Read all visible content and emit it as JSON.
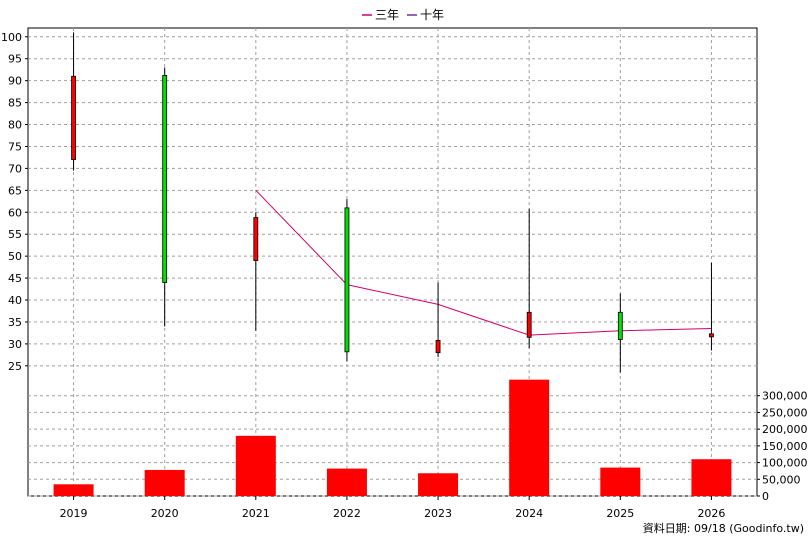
{
  "chart_data": {
    "type": "candlestick",
    "categories": [
      "2019",
      "2020",
      "2021",
      "2022",
      "2023",
      "2024",
      "2025",
      "2026"
    ],
    "price": {
      "ylim": [
        22,
        102
      ],
      "ticks": [
        25,
        30,
        35,
        40,
        45,
        50,
        55,
        60,
        65,
        70,
        75,
        80,
        85,
        90,
        95,
        100
      ],
      "candles": [
        {
          "open": 72.0,
          "close": 91.0,
          "high": 101.0,
          "low": 69.5,
          "color": "#ff0000"
        },
        {
          "open": 91.2,
          "close": 44.0,
          "high": 93.0,
          "low": 34.0,
          "color": "#00e000"
        },
        {
          "open": 49.0,
          "close": 58.8,
          "high": 60.0,
          "low": 33.0,
          "color": "#ff0000"
        },
        {
          "open": 61.0,
          "close": 28.2,
          "high": 63.0,
          "low": 26.0,
          "color": "#00e000"
        },
        {
          "open": 28.0,
          "close": 30.8,
          "high": 44.0,
          "low": 27.0,
          "color": "#ff0000"
        },
        {
          "open": 31.5,
          "close": 37.2,
          "high": 60.8,
          "low": 29.0,
          "color": "#ff0000"
        },
        {
          "open": 37.2,
          "close": 31.0,
          "high": 41.5,
          "low": 23.5,
          "color": "#00e000"
        },
        {
          "open": 31.6,
          "close": 32.3,
          "high": 48.5,
          "low": 28.5,
          "color": "#ff0000"
        }
      ]
    },
    "series": [
      {
        "name": "三年",
        "color": "#d0006f",
        "values": [
          null,
          null,
          65.0,
          43.5,
          39.0,
          32.0,
          33.0,
          33.5
        ]
      },
      {
        "name": "十年",
        "color": "#7030a0",
        "values": [
          null,
          null,
          null,
          null,
          null,
          null,
          null,
          null
        ]
      }
    ],
    "volume": {
      "ylim": [
        0,
        350000
      ],
      "ticks": [
        0,
        50000,
        100000,
        150000,
        200000,
        250000,
        300000
      ],
      "tick_labels": [
        "0",
        "50,000",
        "100,000",
        "150,000",
        "200,000",
        "250,000",
        "300,000"
      ],
      "values": [
        35000,
        78000,
        180000,
        82000,
        68000,
        348000,
        85000,
        110000
      ],
      "color": "#ff0000"
    },
    "grid": true,
    "legend": "top-center"
  },
  "footer": {
    "text": "資料日期: 09/18  (Goodinfo.tw)"
  }
}
